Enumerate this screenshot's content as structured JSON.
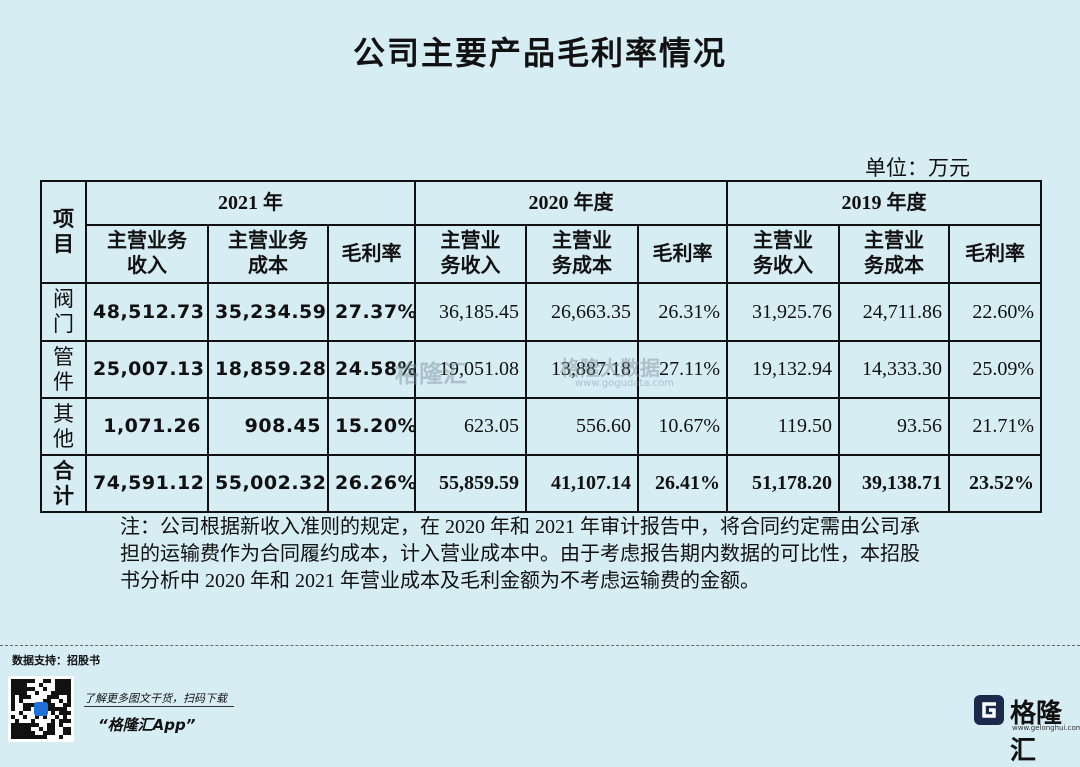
{
  "header": {
    "title": "公司主要产品毛利率情况",
    "unit": "单位：万元"
  },
  "table": {
    "corner": "项目",
    "years": [
      "2021 年",
      "2020 年度",
      "2019 年度"
    ],
    "subheaders": [
      [
        "主营业务\n收入",
        "主营业务\n成本",
        "毛利率"
      ],
      [
        "主营业\n务收入",
        "主营业\n务成本",
        "毛利率"
      ],
      [
        "主营业\n务收入",
        "主营业\n务成本",
        "毛利率"
      ]
    ],
    "rows": [
      {
        "label": "阀门",
        "cells": [
          "48,512.73",
          "35,234.59",
          "27.37%",
          "36,185.45",
          "26,663.35",
          "26.31%",
          "31,925.76",
          "24,711.86",
          "22.60%"
        ]
      },
      {
        "label": "管件",
        "cells": [
          "25,007.13",
          "18,859.28",
          "24.58%",
          "19,051.08",
          "13,887.18",
          "27.11%",
          "19,132.94",
          "14,333.30",
          "25.09%"
        ]
      },
      {
        "label": "其他",
        "cells": [
          "1,071.26",
          "908.45",
          "15.20%",
          "623.05",
          "556.60",
          "10.67%",
          "119.50",
          "93.56",
          "21.71%"
        ]
      },
      {
        "label": "合计",
        "cells": [
          "74,591.12",
          "55,002.32",
          "26.26%",
          "55,859.59",
          "41,107.14",
          "26.41%",
          "51,178.20",
          "39,138.71",
          "23.52%"
        ]
      }
    ]
  },
  "note": [
    "注：公司根据新收入准则的规定，在 2020 年和 2021 年审计报告中，将合同约定需由公司承",
    "担的运输费作为合同履约成本，计入营业成本中。由于考虑报告期内数据的可比性，本招股",
    "书分析中 2020 年和 2021 年营业成本及毛利金额为不考虑运输费的金额。"
  ],
  "watermark": {
    "brand": "格隆汇",
    "name": "格隆大数据",
    "url": "www.gogudata.com"
  },
  "footer": {
    "source": "数据支持：招股书",
    "promo": "了解更多图文干货，扫码下载",
    "app": "“格隆汇App”",
    "logo": "格隆汇",
    "logo_url": "www.gelonghui.com"
  }
}
